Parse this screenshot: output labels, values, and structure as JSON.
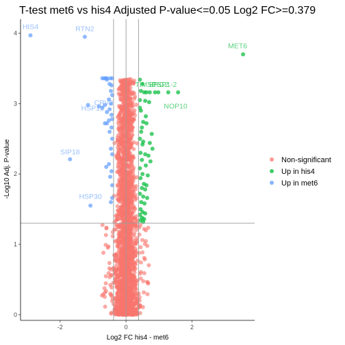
{
  "chart_data": {
    "type": "scatter",
    "title": "T-test met6 vs his4 Adjusted P-value<=0.05 Log2 FC>=0.379",
    "xlabel": "Log2 FC his4 - met6",
    "ylabel": "-Log10 Adj. P-value",
    "xlim": [
      -3.2,
      3.9
    ],
    "ylim": [
      -0.08,
      4.2
    ],
    "x_ticks": [
      -2,
      0,
      2
    ],
    "y_ticks": [
      0,
      1,
      2,
      3,
      4
    ],
    "grid": false,
    "fc_threshold": 0.379,
    "p_threshold_line": 1.301,
    "legend": {
      "placement": "right",
      "entries": [
        {
          "name": "Non-significant",
          "color": "#F8766D"
        },
        {
          "name": "Up in his4",
          "color": "#00BA38"
        },
        {
          "name": "Up in met6",
          "color": "#619CFF"
        }
      ]
    },
    "colors": {
      "nonsig": "#F8766D",
      "up_his4": "#00BA38",
      "up_met6": "#619CFF",
      "refline": "#9a9a9a"
    },
    "series": [
      {
        "name": "Up in his4",
        "points": [
          [
            3.55,
            3.7
          ],
          [
            0.42,
            3.34
          ],
          [
            0.5,
            3.28
          ],
          [
            0.45,
            3.18
          ],
          [
            0.55,
            3.16
          ],
          [
            0.62,
            3.16
          ],
          [
            0.72,
            3.16
          ],
          [
            0.88,
            3.16
          ],
          [
            0.98,
            3.16
          ],
          [
            1.28,
            3.16
          ],
          [
            1.58,
            3.16
          ],
          [
            0.42,
            3.05
          ],
          [
            0.58,
            3.04
          ],
          [
            0.42,
            2.94
          ],
          [
            0.45,
            2.9
          ],
          [
            0.52,
            2.74
          ],
          [
            0.62,
            2.72
          ],
          [
            0.46,
            2.6
          ],
          [
            0.78,
            2.57
          ],
          [
            0.42,
            2.5
          ],
          [
            0.52,
            2.46
          ],
          [
            0.72,
            2.44
          ],
          [
            0.5,
            2.42
          ],
          [
            0.44,
            2.3
          ],
          [
            0.58,
            2.28
          ],
          [
            0.68,
            2.26
          ],
          [
            0.48,
            2.2
          ],
          [
            0.6,
            2.12
          ],
          [
            0.42,
            2.08
          ],
          [
            0.5,
            2.0
          ],
          [
            0.66,
            1.98
          ],
          [
            0.44,
            1.94
          ],
          [
            0.54,
            1.86
          ],
          [
            0.62,
            1.84
          ],
          [
            0.48,
            1.8
          ],
          [
            0.58,
            1.78
          ],
          [
            0.42,
            1.72
          ],
          [
            0.52,
            1.68
          ],
          [
            0.64,
            1.66
          ],
          [
            0.46,
            1.6
          ],
          [
            0.56,
            1.58
          ],
          [
            0.44,
            1.5
          ],
          [
            0.5,
            1.46
          ],
          [
            0.58,
            1.44
          ],
          [
            0.42,
            1.42
          ],
          [
            0.48,
            1.38
          ],
          [
            0.55,
            1.36
          ],
          [
            0.44,
            1.34
          ],
          [
            0.52,
            1.32
          ],
          [
            0.6,
            2.82
          ],
          [
            0.7,
            3.02
          ],
          [
            0.48,
            2.66
          ],
          [
            0.8,
            2.36
          ],
          [
            0.74,
            2.18
          ]
        ]
      },
      {
        "name": "Up in met6",
        "points": [
          [
            -2.9,
            3.97
          ],
          [
            -1.25,
            3.95
          ],
          [
            -0.72,
            3.36
          ],
          [
            -0.66,
            3.36
          ],
          [
            -0.62,
            3.36
          ],
          [
            -0.58,
            3.36
          ],
          [
            -0.48,
            3.36
          ],
          [
            -0.42,
            3.36
          ],
          [
            -0.58,
            3.34
          ],
          [
            -0.5,
            3.28
          ],
          [
            -0.44,
            3.26
          ],
          [
            -0.46,
            3.18
          ],
          [
            -0.42,
            3.12
          ],
          [
            -0.52,
            3.06
          ],
          [
            -0.46,
            3.0
          ],
          [
            -0.64,
            2.98
          ],
          [
            -1.15,
            2.98
          ],
          [
            -0.82,
            2.96
          ],
          [
            -0.72,
            2.94
          ],
          [
            -0.5,
            2.92
          ],
          [
            -0.58,
            2.88
          ],
          [
            -0.44,
            2.84
          ],
          [
            -0.42,
            2.78
          ],
          [
            -0.52,
            2.76
          ],
          [
            -0.58,
            2.72
          ],
          [
            -0.64,
            2.72
          ],
          [
            -0.44,
            2.66
          ],
          [
            -0.5,
            2.6
          ],
          [
            -0.42,
            2.5
          ],
          [
            -0.46,
            2.36
          ],
          [
            -0.42,
            2.28
          ],
          [
            -0.52,
            2.14
          ],
          [
            -0.6,
            2.1
          ],
          [
            -0.44,
            2.04
          ],
          [
            -0.48,
            1.96
          ],
          [
            -0.42,
            1.84
          ],
          [
            -1.7,
            2.21
          ],
          [
            -0.42,
            1.66
          ],
          [
            -0.46,
            1.6
          ],
          [
            -1.08,
            1.55
          ]
        ]
      },
      {
        "name": "Non-significant",
        "generated": true,
        "note_points": [
          [
            -0.3,
            0.0
          ],
          [
            0.3,
            3.36
          ]
        ]
      }
    ],
    "annotations": [
      {
        "text": "HIS4",
        "x": -2.9,
        "y": 3.97,
        "group": "up_met6"
      },
      {
        "text": "RTN2",
        "x": -1.25,
        "y": 3.95,
        "group": "up_met6"
      },
      {
        "text": "MET6",
        "x": 3.55,
        "y": 3.7,
        "group": "up_his4"
      },
      {
        "text": "TIM50",
        "x": 0.98,
        "y": 3.16,
        "group": "up_his4"
      },
      {
        "text": "ERG2",
        "x": 1.28,
        "y": 3.16,
        "group": "up_his4"
      },
      {
        "text": "PSP1-2",
        "x": 1.58,
        "y": 3.16,
        "group": "up_his4"
      },
      {
        "text": "NOP10",
        "x": 0.98,
        "y": 2.95,
        "group": "up_his4"
      },
      {
        "text": "HSP12",
        "x": -0.82,
        "y": 2.96,
        "group": "up_met6"
      },
      {
        "text": "CRV2",
        "x": -0.72,
        "y": 2.98,
        "group": "up_met6"
      },
      {
        "text": "SIP18",
        "x": -1.7,
        "y": 2.21,
        "group": "up_met6"
      },
      {
        "text": "HSP30",
        "x": -1.08,
        "y": 1.55,
        "group": "up_met6"
      }
    ]
  }
}
